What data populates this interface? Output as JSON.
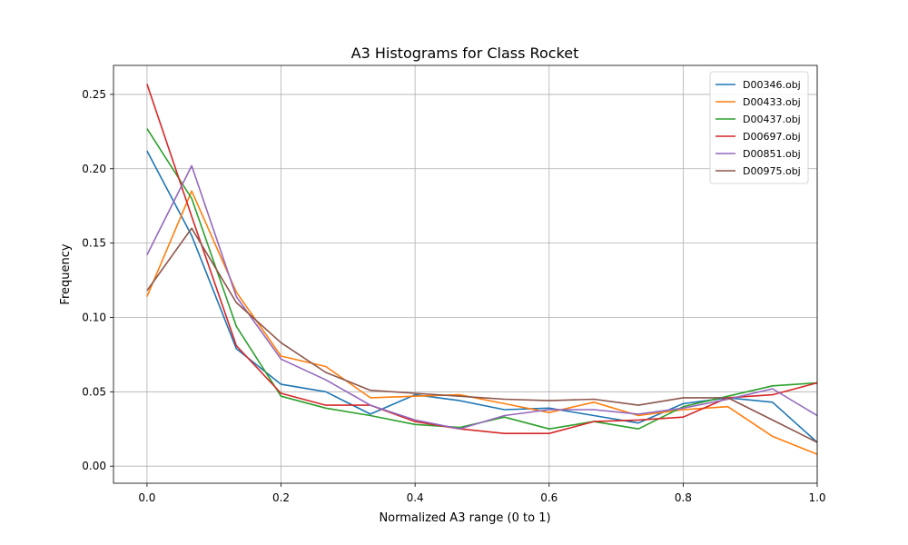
{
  "chart_data": {
    "type": "line",
    "title": "A3 Histograms for Class Rocket",
    "xlabel": "Normalized A3 range (0 to 1)",
    "ylabel": "Frequency",
    "xlim": [
      -0.05,
      1.0
    ],
    "ylim": [
      -0.0115,
      0.2695
    ],
    "xticks": [
      0.0,
      0.2,
      0.4,
      0.6,
      0.8,
      1.0
    ],
    "xtick_labels": [
      "0.0",
      "0.2",
      "0.4",
      "0.6",
      "0.8",
      "1.0"
    ],
    "yticks": [
      0.0,
      0.05,
      0.1,
      0.15,
      0.2,
      0.25
    ],
    "ytick_labels": [
      "0.00",
      "0.05",
      "0.10",
      "0.15",
      "0.20",
      "0.25"
    ],
    "grid": true,
    "legend_position": "top-right",
    "x": [
      0.0,
      0.0667,
      0.1333,
      0.2,
      0.2667,
      0.3333,
      0.4,
      0.4667,
      0.5333,
      0.6,
      0.6667,
      0.7333,
      0.8,
      0.8667,
      0.9333,
      1.0
    ],
    "series": [
      {
        "name": "D00346.obj",
        "color": "#1f77b4",
        "values": [
          0.212,
          0.155,
          0.079,
          0.055,
          0.05,
          0.035,
          0.048,
          0.044,
          0.038,
          0.039,
          0.034,
          0.029,
          0.042,
          0.046,
          0.043,
          0.016
        ]
      },
      {
        "name": "D00433.obj",
        "color": "#ff7f0e",
        "values": [
          0.114,
          0.185,
          0.117,
          0.074,
          0.067,
          0.046,
          0.047,
          0.048,
          0.042,
          0.036,
          0.043,
          0.034,
          0.038,
          0.04,
          0.02,
          0.008
        ]
      },
      {
        "name": "D00437.obj",
        "color": "#2ca02c",
        "values": [
          0.227,
          0.18,
          0.094,
          0.047,
          0.039,
          0.034,
          0.028,
          0.026,
          0.033,
          0.025,
          0.03,
          0.025,
          0.04,
          0.047,
          0.054,
          0.056
        ]
      },
      {
        "name": "D00697.obj",
        "color": "#d62728",
        "values": [
          0.257,
          0.168,
          0.081,
          0.049,
          0.041,
          0.041,
          0.03,
          0.025,
          0.022,
          0.022,
          0.03,
          0.031,
          0.033,
          0.046,
          0.048,
          0.056
        ]
      },
      {
        "name": "D00851.obj",
        "color": "#9467bd",
        "values": [
          0.142,
          0.202,
          0.114,
          0.072,
          0.058,
          0.041,
          0.031,
          0.025,
          0.034,
          0.038,
          0.038,
          0.035,
          0.039,
          0.045,
          0.052,
          0.034
        ]
      },
      {
        "name": "D00975.obj",
        "color": "#8c564b",
        "values": [
          0.118,
          0.16,
          0.11,
          0.083,
          0.063,
          0.051,
          0.049,
          0.047,
          0.045,
          0.044,
          0.045,
          0.041,
          0.046,
          0.046,
          0.031,
          0.016
        ]
      }
    ]
  }
}
